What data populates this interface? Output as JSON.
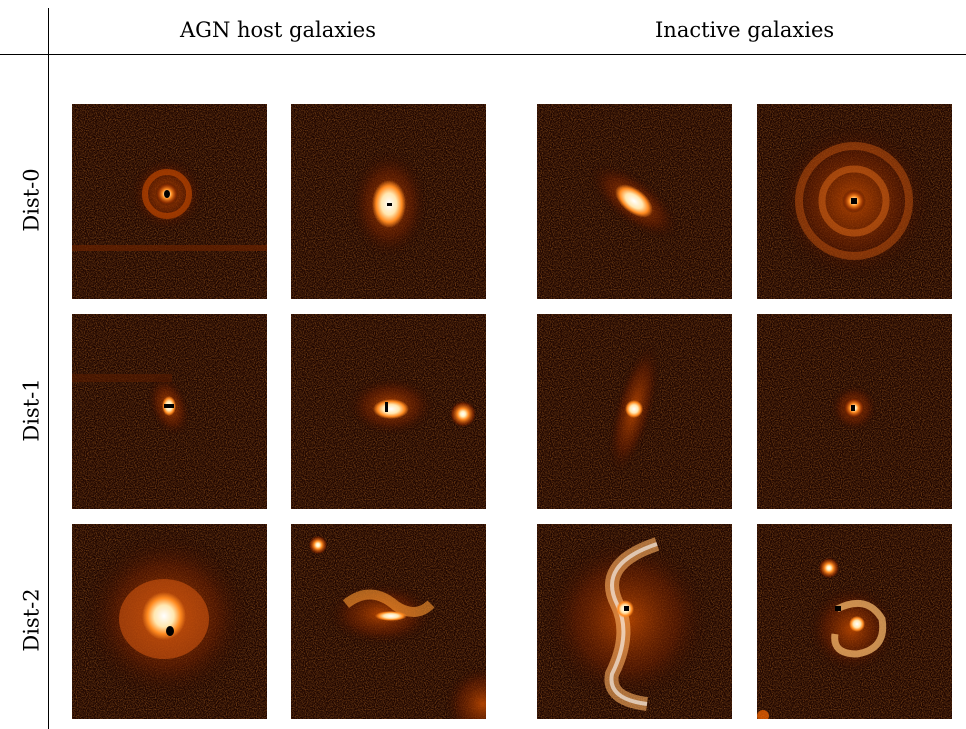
{
  "headers": {
    "agn": "AGN host galaxies",
    "inactive": "Inactive galaxies"
  },
  "rows": [
    {
      "label": "Dist-0"
    },
    {
      "label": "Dist-1"
    },
    {
      "label": "Dist-2"
    }
  ],
  "colors": {
    "background": "#1c0400",
    "glow": "#ff7a1a",
    "core": "#ffffff"
  }
}
